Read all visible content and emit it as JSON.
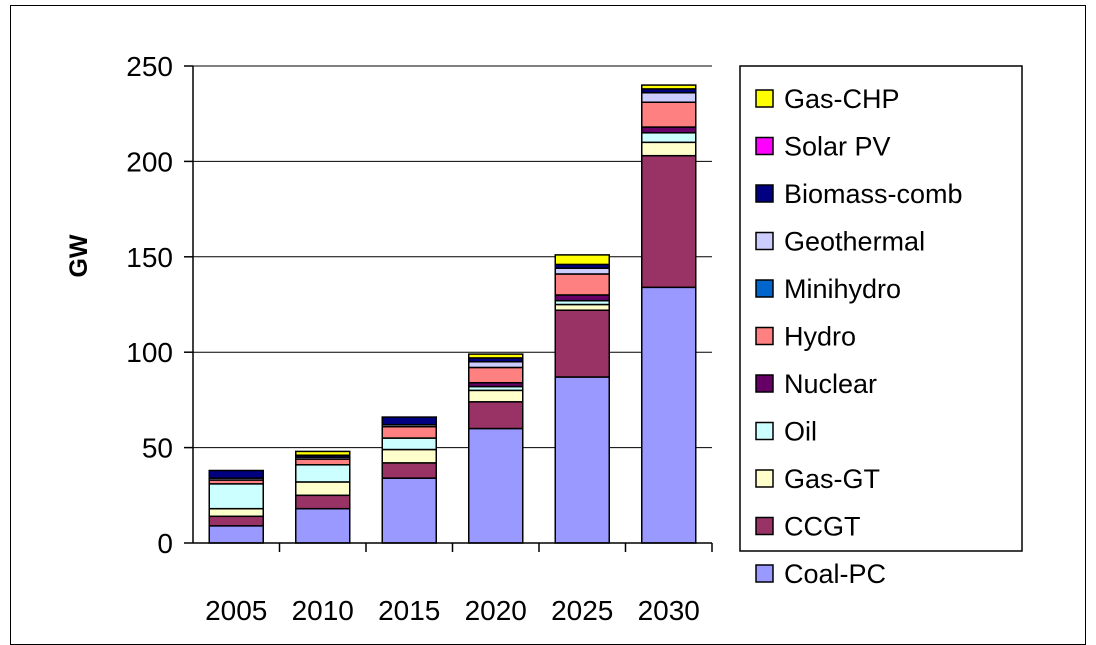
{
  "chart_data": {
    "type": "bar",
    "stacked": true,
    "title": "",
    "xlabel": "",
    "ylabel": "GW",
    "ylim": [
      0,
      250
    ],
    "yticks": [
      0,
      50,
      100,
      150,
      200,
      250
    ],
    "grid": true,
    "legend_position": "right",
    "categories": [
      "2005",
      "2010",
      "2015",
      "2020",
      "2025",
      "2030"
    ],
    "series": [
      {
        "name": "Coal-PC",
        "color": "#9999FF",
        "values": [
          9,
          18,
          34,
          60,
          87,
          134
        ]
      },
      {
        "name": "CCGT",
        "color": "#993366",
        "values": [
          5,
          7,
          8,
          14,
          35,
          69
        ]
      },
      {
        "name": "Gas-GT",
        "color": "#FFFFCC",
        "values": [
          4,
          7,
          7,
          6,
          3,
          7
        ]
      },
      {
        "name": "Oil",
        "color": "#CCFFFF",
        "values": [
          13,
          9,
          6,
          2,
          2,
          5
        ]
      },
      {
        "name": "Nuclear",
        "color": "#660066",
        "values": [
          0,
          0,
          0,
          2,
          3,
          3
        ]
      },
      {
        "name": "Hydro",
        "color": "#FF8080",
        "values": [
          2,
          3,
          6,
          8,
          11,
          13
        ]
      },
      {
        "name": "Minihydro",
        "color": "#0066CC",
        "values": [
          0,
          0,
          0,
          0,
          0,
          0
        ]
      },
      {
        "name": "Geothermal",
        "color": "#CCCCFF",
        "values": [
          1,
          1,
          1,
          3,
          3,
          5
        ]
      },
      {
        "name": "Biomass-comb",
        "color": "#000080",
        "values": [
          4,
          1,
          4,
          2,
          2,
          2
        ]
      },
      {
        "name": "Solar PV",
        "color": "#FF00FF",
        "values": [
          0,
          0,
          0,
          0,
          0,
          0
        ]
      },
      {
        "name": "Gas-CHP",
        "color": "#FFFF00",
        "values": [
          0,
          2,
          0,
          2,
          5,
          2
        ]
      }
    ]
  }
}
